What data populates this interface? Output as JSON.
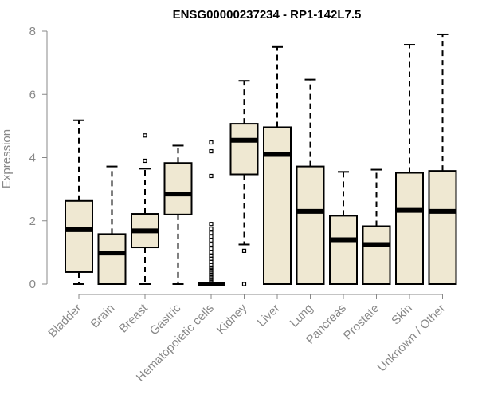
{
  "chart_data": {
    "type": "boxplot",
    "title": "ENSG00000237234 - RP1-142L7.5",
    "xlabel": "",
    "ylabel": "Expression",
    "ylim": [
      0,
      8
    ],
    "yticks": [
      0,
      2,
      4,
      6,
      8
    ],
    "grid": false,
    "categories": [
      "Bladder",
      "Brain",
      "Breast",
      "Gastric",
      "Hematopoietic cells",
      "Kidney",
      "Liver",
      "Lung",
      "Pancreas",
      "Prostate",
      "Skin",
      "Unknown / Other"
    ],
    "boxes": [
      {
        "name": "Bladder",
        "min": 0.0,
        "q1": 0.38,
        "median": 1.72,
        "q3": 2.63,
        "max": 5.18,
        "outliers": []
      },
      {
        "name": "Brain",
        "min": 0.0,
        "q1": 0.0,
        "median": 0.98,
        "q3": 1.58,
        "max": 3.72,
        "outliers": []
      },
      {
        "name": "Breast",
        "min": 0.0,
        "q1": 1.16,
        "median": 1.68,
        "q3": 2.22,
        "max": 3.65,
        "outliers": [
          3.9,
          4.7
        ]
      },
      {
        "name": "Gastric",
        "min": 0.0,
        "q1": 2.2,
        "median": 2.85,
        "q3": 3.83,
        "max": 4.38,
        "outliers": []
      },
      {
        "name": "Hematopoietic cells",
        "min": 0.0,
        "q1": 0.0,
        "median": 0.0,
        "q3": 0.0,
        "max": 0.0,
        "outliers": [
          0.08,
          0.15,
          0.22,
          0.3,
          0.38,
          0.45,
          0.52,
          0.6,
          0.7,
          0.8,
          0.9,
          1.0,
          1.12,
          1.25,
          1.38,
          1.5,
          1.62,
          1.75,
          1.9,
          3.42,
          4.2,
          4.48
        ]
      },
      {
        "name": "Kidney",
        "min": 1.25,
        "q1": 3.47,
        "median": 4.55,
        "q3": 5.07,
        "max": 6.43,
        "outliers": [
          1.05,
          0.0
        ]
      },
      {
        "name": "Liver",
        "min": 0.0,
        "q1": 0.0,
        "median": 4.1,
        "q3": 4.96,
        "max": 7.5,
        "outliers": []
      },
      {
        "name": "Lung",
        "min": 0.0,
        "q1": 0.0,
        "median": 2.3,
        "q3": 3.72,
        "max": 6.47,
        "outliers": []
      },
      {
        "name": "Pancreas",
        "min": 0.0,
        "q1": 0.0,
        "median": 1.4,
        "q3": 2.16,
        "max": 3.55,
        "outliers": []
      },
      {
        "name": "Prostate",
        "min": 0.0,
        "q1": 0.0,
        "median": 1.25,
        "q3": 1.83,
        "max": 3.62,
        "outliers": []
      },
      {
        "name": "Skin",
        "min": 0.0,
        "q1": 0.0,
        "median": 2.33,
        "q3": 3.52,
        "max": 7.57,
        "outliers": []
      },
      {
        "name": "Unknown / Other",
        "min": 0.0,
        "q1": 0.0,
        "median": 2.3,
        "q3": 3.58,
        "max": 7.9,
        "outliers": []
      }
    ],
    "colors": {
      "box_fill": "#efe8d2",
      "stroke": "#000000",
      "axis": "#888888"
    }
  }
}
